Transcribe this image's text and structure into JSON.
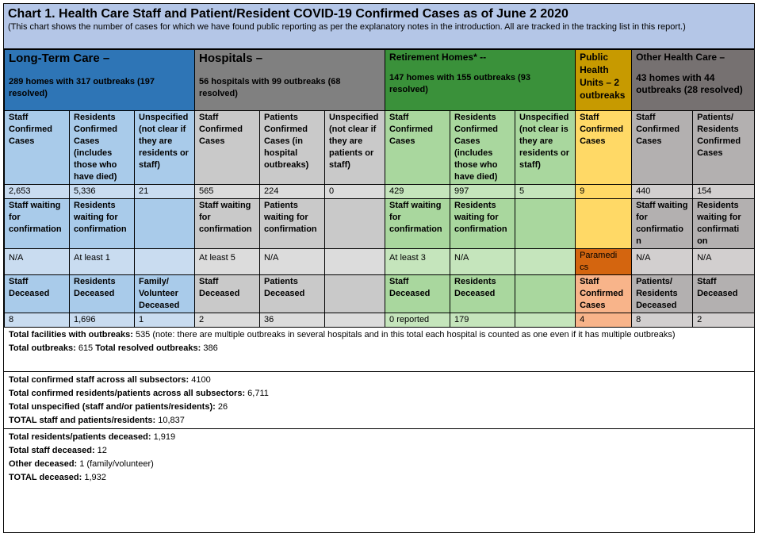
{
  "header": {
    "title": "Chart 1. Health Care Staff and Patient/Resident COVID-19 Confirmed Cases as of June 2 2020",
    "subtitle": "(This chart shows the number of cases for which we have found public reporting as per the explanatory notes in the introduction. All are tracked in the tracking list in this report.)"
  },
  "sections": {
    "ltc": {
      "title": "Long-Term Care –",
      "detail": "289 homes with 317 outbreaks (197 resolved)"
    },
    "hospitals": {
      "title": "Hospitals –",
      "detail": "56 hospitals with 99 outbreaks (68 resolved)"
    },
    "retirement": {
      "title": "Retirement Homes* --",
      "detail": "147 homes with 155 outbreaks (93 resolved)"
    },
    "phu": {
      "title": "Public Health Units – 2 outbreaks"
    },
    "other": {
      "title": "Other Health Care –",
      "detail": "43 homes with 44 outbreaks (28 resolved)"
    }
  },
  "rows": {
    "confirmed_headers": [
      "Staff Confirmed Cases",
      "Residents Confirmed Cases (includes those who have died)",
      "Unspecified (not clear if they are residents or staff)",
      "Staff Confirmed Cases",
      "Patients Confirmed Cases (in hospital outbreaks)",
      "Unspecified (not clear if they are patients or staff)",
      "Staff Confirmed Cases",
      "Residents Confirmed Cases (includes those who have died)",
      "Unspecified (not clear is they are residents or staff)",
      "Staff Confirmed Cases",
      "Staff Confirmed Cases",
      "Patients/ Residents Confirmed Cases"
    ],
    "confirmed_values": [
      "2,653",
      "5,336",
      "21",
      "565",
      "224",
      "0",
      "429",
      "997",
      "5",
      "9",
      "440",
      "154"
    ],
    "waiting_headers": [
      "Staff waiting for confirmation",
      "Residents waiting for confirmation",
      "",
      "Staff waiting for confirmation",
      "Patients waiting for confirmation",
      "",
      "Staff waiting for confirmation",
      "Residents waiting for confirmation",
      "",
      "",
      "Staff waiting for confirmatio n",
      "Residents waiting for confirmati on"
    ],
    "waiting_values": [
      "N/A",
      "At least 1",
      "",
      "At least 5",
      "N/A",
      "",
      "At least 3",
      "N/A",
      "",
      "Paramedi cs",
      "N/A",
      "N/A"
    ],
    "deceased_headers": [
      "Staff Deceased",
      "Residents Deceased",
      "Family/ Volunteer Deceased",
      "Staff Deceased",
      "Patients Deceased",
      "",
      "Staff Deceased",
      "Residents Deceased",
      "",
      "Staff Confirmed Cases",
      "Patients/ Residents Deceased",
      "Staff Deceased"
    ],
    "deceased_values": [
      "8",
      "1,696",
      "1",
      "2",
      "36",
      "",
      "0 reported",
      "179",
      "",
      "4",
      "8",
      "2"
    ]
  },
  "summary": {
    "block1": [
      {
        "label": "Total facilities with outbreaks:",
        "value": " 535 (note: there are multiple outbreaks in several hospitals and in this total each hospital is counted as one even if it has multiple outbreaks)"
      },
      {
        "label": "Total outbreaks:",
        "value": " 615  ",
        "label2": "Total resolved outbreaks:",
        "value2": " 386"
      }
    ],
    "block2": [
      {
        "label": "Total confirmed staff across all subsectors:",
        "value": " 4100"
      },
      {
        "label": "Total confirmed residents/patients across all subsectors:",
        "value": " 6,711"
      },
      {
        "label": "Total unspecified (staff and/or patients/residents):",
        "value": " 26"
      },
      {
        "label": "TOTAL staff and patients/residents:",
        "value": " 10,837"
      }
    ],
    "block3": [
      {
        "label": "Total residents/patients deceased:",
        "value": " 1,919"
      },
      {
        "label": "Total staff deceased:",
        "value": " 12"
      },
      {
        "label": "Other deceased:",
        "value": " 1 (family/volunteer)"
      },
      {
        "label": "TOTAL deceased:",
        "value": " 1,932"
      }
    ]
  }
}
